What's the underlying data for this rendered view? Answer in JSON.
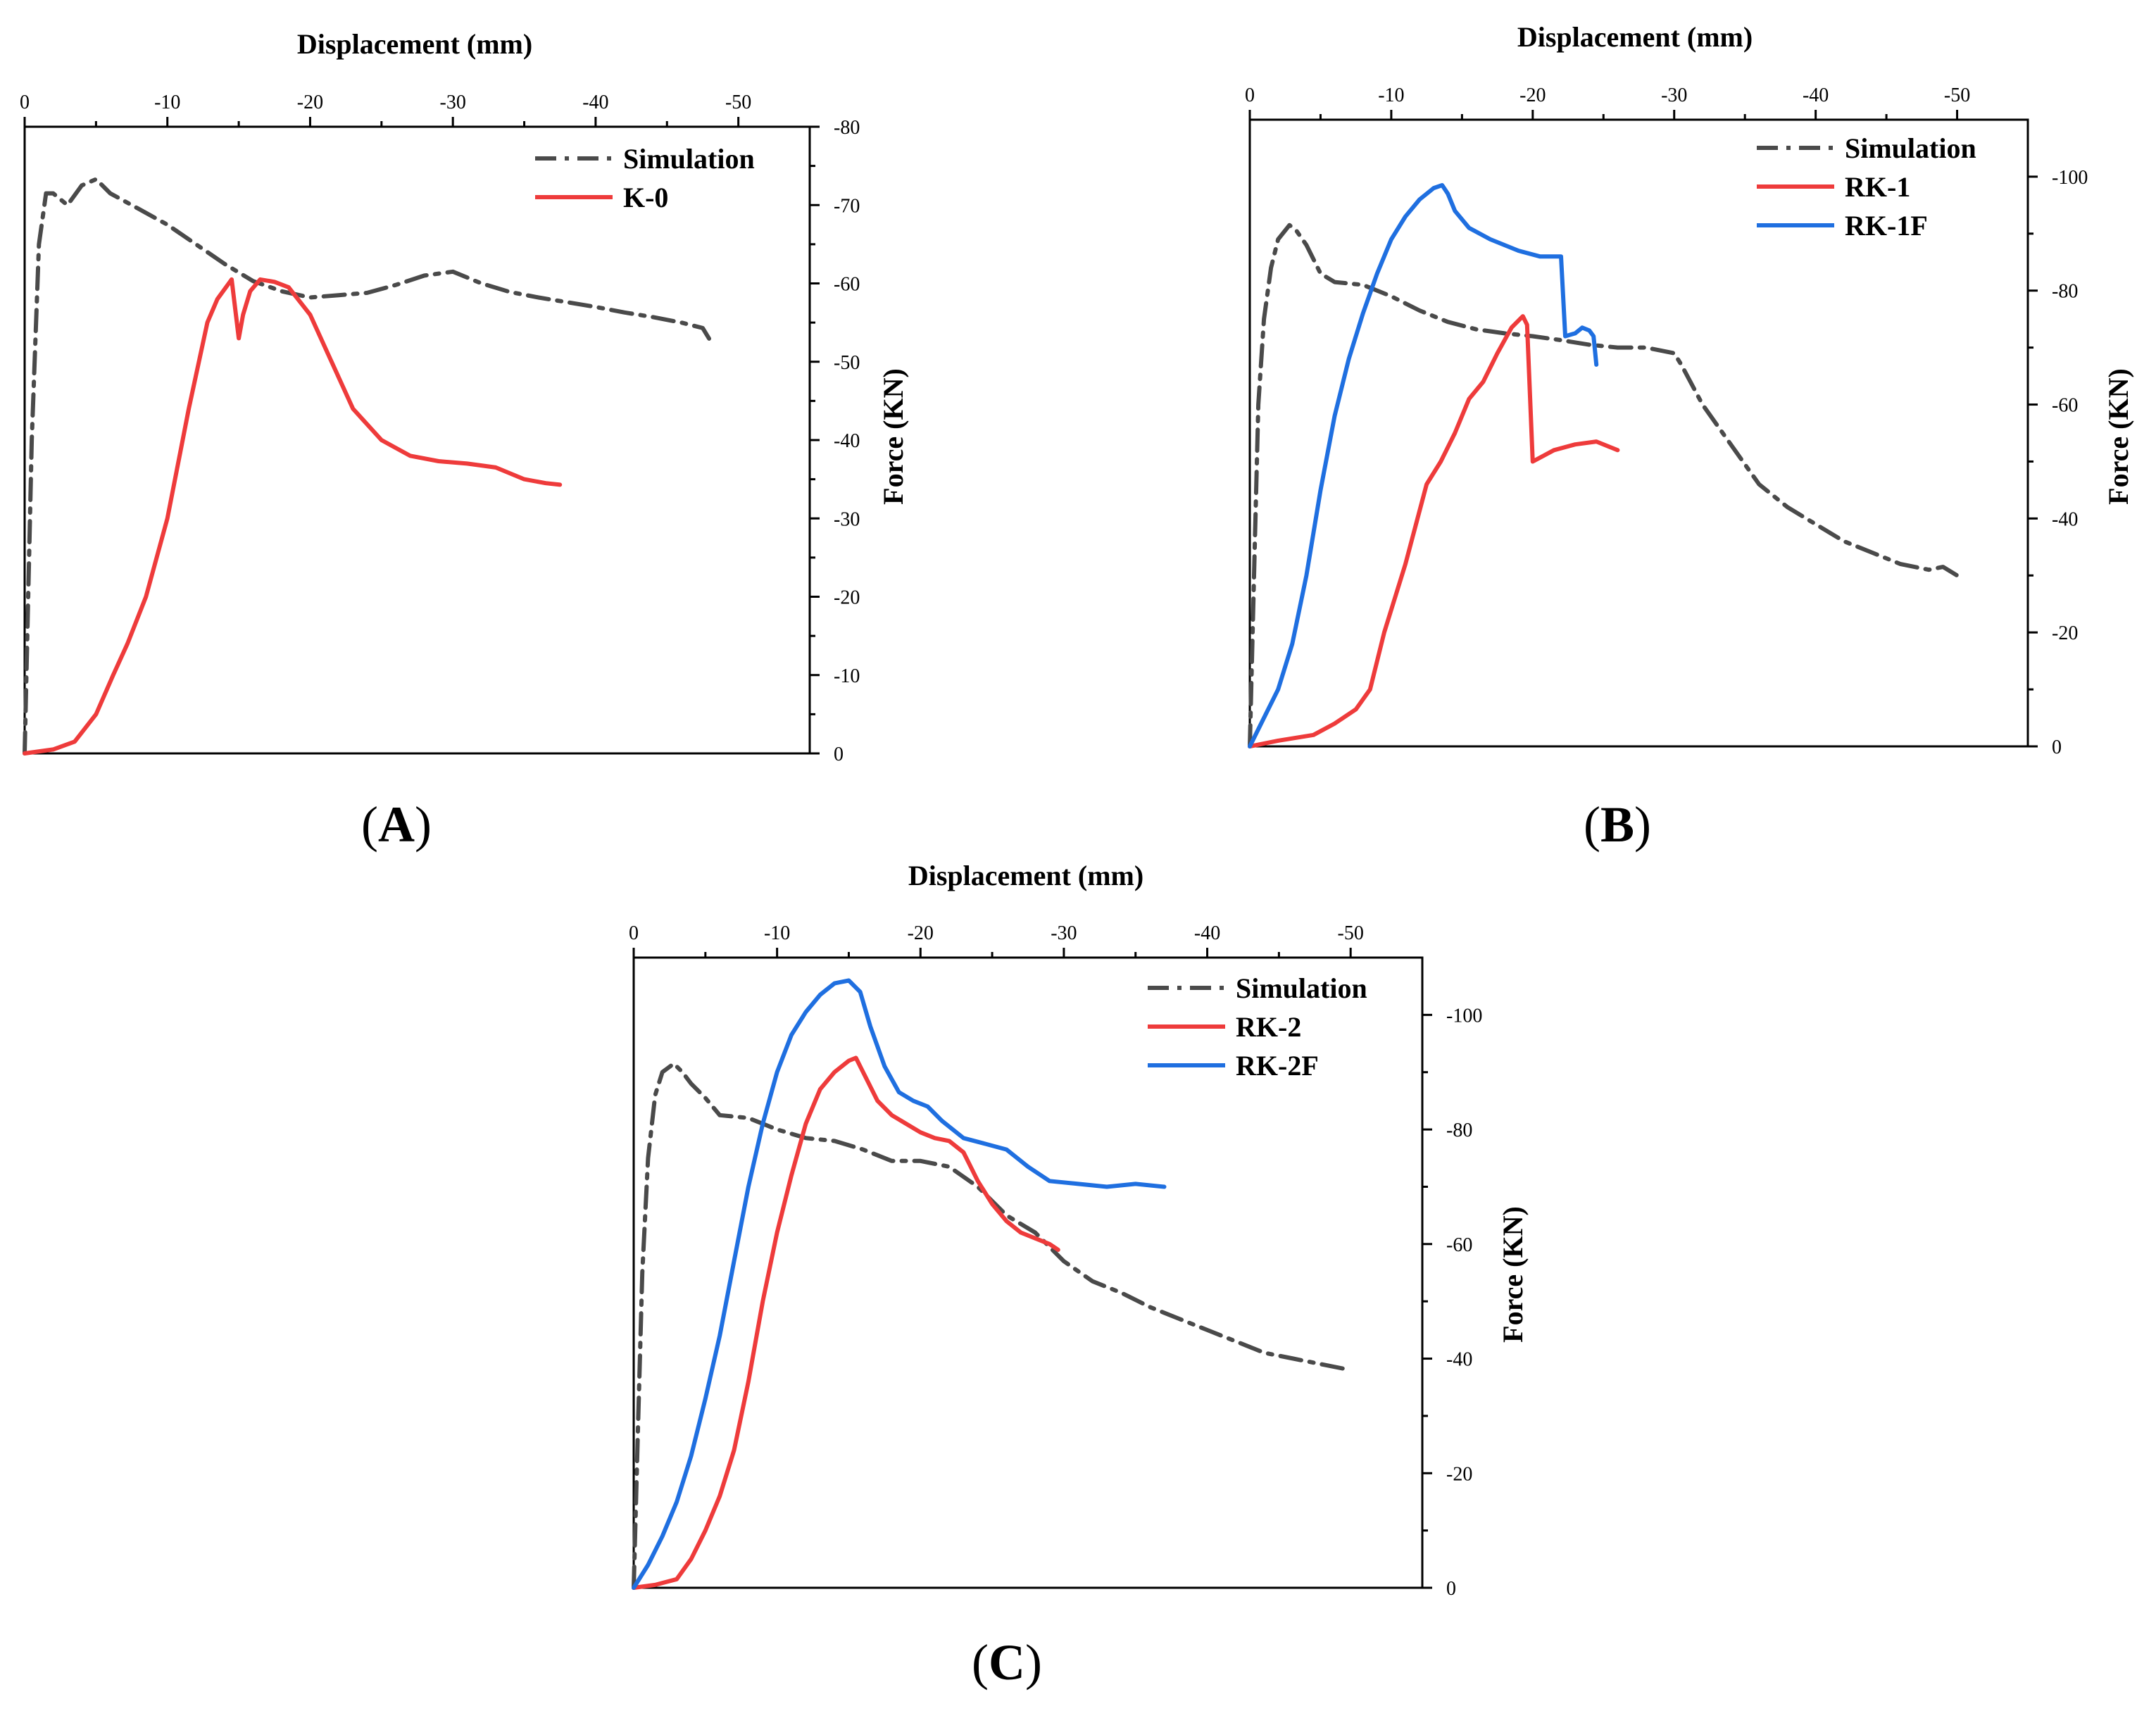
{
  "figure": {
    "colors": {
      "simulation": "#4a4a4a",
      "red": "#ee3b3b",
      "blue": "#1f6fe0"
    }
  },
  "chart_data": [
    {
      "type": "line",
      "panel": "A",
      "xlabel": "Displacement (mm)",
      "ylabel": "Force (KN)",
      "xlim": [
        0,
        -55
      ],
      "ylim": [
        0,
        -80
      ],
      "xticks": [
        0,
        -10,
        -20,
        -30,
        -40,
        -50
      ],
      "yticks": [
        0,
        -10,
        -20,
        -30,
        -40,
        -50,
        -60,
        -70,
        -80
      ],
      "xtick_labels": [
        "0",
        "-10",
        "-20",
        "-30",
        "-40",
        "-50"
      ],
      "ytick_labels": [
        "0",
        "-10",
        "-20",
        "-30",
        "-40",
        "-50",
        "-60",
        "-70",
        "-80"
      ],
      "legend_position": "top-right",
      "series": [
        {
          "name": "Simulation",
          "color": "#4a4a4a",
          "style": "dashdot",
          "x": [
            0,
            -0.5,
            -1,
            -1.5,
            -2,
            -3,
            -4,
            -5,
            -6,
            -8,
            -10,
            -12,
            -14,
            -16,
            -18,
            -20,
            -22,
            -24,
            -26,
            -28,
            -30,
            -32,
            -34,
            -36,
            -38,
            -40,
            -42,
            -44,
            -46,
            -47.5,
            -48
          ],
          "y": [
            0,
            -40,
            -65,
            -71.5,
            -71.5,
            -70,
            -72.5,
            -73.3,
            -71.5,
            -69.5,
            -67.5,
            -65,
            -62.5,
            -60.3,
            -59,
            -58.2,
            -58.5,
            -58.8,
            -59.8,
            -61,
            -61.5,
            -60,
            -58.9,
            -58.2,
            -57.6,
            -57,
            -56.3,
            -55.7,
            -55,
            -54.3,
            -52.8
          ]
        },
        {
          "name": "K-0",
          "color": "#ee3b3b",
          "style": "solid",
          "x": [
            0,
            -2,
            -3.5,
            -5,
            -6.2,
            -7.2,
            -8.5,
            -10,
            -11.5,
            -12.8,
            -13.5,
            -14.5,
            -15,
            -15.3,
            -15.8,
            -16.5,
            -17.5,
            -18.5,
            -20,
            -21.5,
            -23,
            -25,
            -27,
            -29,
            -31,
            -33,
            -35,
            -36.5,
            -37.5
          ],
          "y": [
            0,
            -0.5,
            -1.5,
            -5,
            -10,
            -14,
            -20,
            -30,
            -44,
            -55,
            -58,
            -60.5,
            -53,
            -56,
            -59,
            -60.5,
            -60.2,
            -59.5,
            -56,
            -50,
            -44,
            -40,
            -38,
            -37.3,
            -37,
            -36.5,
            -35,
            -34.5,
            -34.3
          ]
        }
      ]
    },
    {
      "type": "line",
      "panel": "B",
      "xlabel": "Displacement (mm)",
      "ylabel": "Force (KN)",
      "xlim": [
        0,
        -55
      ],
      "ylim": [
        0,
        -110
      ],
      "xticks": [
        0,
        -10,
        -20,
        -30,
        -40,
        -50
      ],
      "yticks": [
        0,
        -20,
        -40,
        -60,
        -80,
        -100
      ],
      "xtick_labels": [
        "0",
        "-10",
        "-20",
        "-30",
        "-40",
        "-50"
      ],
      "ytick_labels": [
        "0",
        "-20",
        "-40",
        "-60",
        "-80",
        "-100"
      ],
      "legend_position": "top-right",
      "series": [
        {
          "name": "Simulation",
          "color": "#4a4a4a",
          "style": "dashdot",
          "x": [
            0,
            -0.3,
            -0.6,
            -1,
            -1.5,
            -2,
            -2.8,
            -3.3,
            -4,
            -5,
            -6,
            -8,
            -10,
            -12,
            -14,
            -16,
            -18,
            -20,
            -22,
            -24,
            -26,
            -28,
            -30,
            -30.5,
            -32,
            -34,
            -36,
            -38,
            -40,
            -42,
            -44,
            -46,
            -48,
            -49,
            -50
          ],
          "y": [
            0,
            -30,
            -60,
            -75,
            -84,
            -89,
            -91.5,
            -90.5,
            -88,
            -83,
            -81.5,
            -81,
            -79,
            -76.5,
            -74.5,
            -73.2,
            -72.5,
            -72,
            -71.3,
            -70.5,
            -70,
            -70,
            -69,
            -67,
            -60,
            -53,
            -46,
            -42,
            -39,
            -36,
            -34,
            -32,
            -31,
            -31.5,
            -30
          ]
        },
        {
          "name": "RK-1",
          "color": "#ee3b3b",
          "style": "solid",
          "x": [
            0,
            -2,
            -4.5,
            -6,
            -7.5,
            -8.5,
            -9.5,
            -11,
            -12.5,
            -13.5,
            -14.5,
            -15.5,
            -16.5,
            -17.5,
            -18.5,
            -19.3,
            -19.6,
            -20,
            -21.5,
            -23,
            -24.5,
            -26
          ],
          "y": [
            0,
            -1,
            -2,
            -4,
            -6.5,
            -10,
            -20,
            -32,
            -46,
            -50,
            -55,
            -61,
            -64,
            -69,
            -73.5,
            -75.5,
            -74,
            -50,
            -52,
            -53,
            -53.5,
            -52
          ]
        },
        {
          "name": "RK-1F",
          "color": "#1f6fe0",
          "style": "solid",
          "x": [
            0,
            -1,
            -2,
            -3,
            -4,
            -5,
            -6,
            -7,
            -8,
            -9,
            -10,
            -11,
            -12,
            -13,
            -13.6,
            -14,
            -14.5,
            -15.5,
            -17,
            -19,
            -20.5,
            -22,
            -22.3,
            -23,
            -23.5,
            -24,
            -24.3,
            -24.5
          ],
          "y": [
            0,
            -5,
            -10,
            -18,
            -30,
            -45,
            -58,
            -68,
            -76,
            -83,
            -89,
            -93,
            -96,
            -98,
            -98.5,
            -97,
            -94,
            -91,
            -89,
            -87,
            -86,
            -86,
            -72,
            -72.5,
            -73.5,
            -73,
            -72,
            -67
          ]
        }
      ]
    },
    {
      "type": "line",
      "panel": "C",
      "xlabel": "Displacement (mm)",
      "ylabel": "Force (KN)",
      "xlim": [
        0,
        -55
      ],
      "ylim": [
        0,
        -110
      ],
      "xticks": [
        0,
        -10,
        -20,
        -30,
        -40,
        -50
      ],
      "yticks": [
        0,
        -20,
        -40,
        -60,
        -80,
        -100
      ],
      "xtick_labels": [
        "0",
        "-10",
        "-20",
        "-30",
        "-40",
        "-50"
      ],
      "ytick_labels": [
        "0",
        "-20",
        "-40",
        "-60",
        "-80",
        "-100"
      ],
      "legend_position": "top-right",
      "series": [
        {
          "name": "Simulation",
          "color": "#4a4a4a",
          "style": "dashdot",
          "x": [
            0,
            -0.3,
            -0.6,
            -1,
            -1.5,
            -2,
            -2.8,
            -3.4,
            -4,
            -5,
            -6,
            -8,
            -10,
            -12,
            -14,
            -16,
            -18,
            -20,
            -22,
            -24,
            -26,
            -28,
            -30,
            -32,
            -34,
            -36,
            -38,
            -40,
            -42,
            -44,
            -46,
            -48,
            -50
          ],
          "y": [
            0,
            -28,
            -55,
            -75,
            -86,
            -90,
            -91.5,
            -90,
            -88,
            -85.5,
            -82.5,
            -82,
            -80,
            -78.5,
            -78,
            -76.5,
            -74.5,
            -74.5,
            -73.5,
            -70,
            -65,
            -62,
            -57,
            -53.5,
            -51.5,
            -49,
            -47,
            -45,
            -43,
            -41,
            -40,
            -39,
            -38
          ]
        },
        {
          "name": "RK-2",
          "color": "#ee3b3b",
          "style": "solid",
          "x": [
            0,
            -1.5,
            -3,
            -4,
            -5,
            -6,
            -7,
            -8,
            -9,
            -10,
            -11,
            -12,
            -13,
            -14,
            -15,
            -15.5,
            -16,
            -17,
            -18,
            -19,
            -20,
            -21,
            -22,
            -23,
            -24,
            -25,
            -26,
            -27,
            -28,
            -29,
            -29.6
          ],
          "y": [
            0,
            -0.5,
            -1.5,
            -5,
            -10,
            -16,
            -24,
            -36,
            -50,
            -62,
            -72,
            -81,
            -87,
            -90,
            -92,
            -92.5,
            -90,
            -85,
            -82.5,
            -81,
            -79.5,
            -78.5,
            -78,
            -76,
            -71,
            -67,
            -64,
            -62,
            -61,
            -60,
            -59
          ]
        },
        {
          "name": "RK-2F",
          "color": "#1f6fe0",
          "style": "solid",
          "x": [
            0,
            -1,
            -2,
            -3,
            -4,
            -5,
            -6,
            -7,
            -8,
            -9,
            -10,
            -11,
            -12,
            -13,
            -14,
            -15,
            -15.8,
            -16.5,
            -17.5,
            -18.5,
            -19.5,
            -20.5,
            -21.5,
            -23,
            -24.5,
            -26,
            -27.5,
            -29,
            -31,
            -33,
            -35,
            -37
          ],
          "y": [
            0,
            -4,
            -9,
            -15,
            -23,
            -33,
            -44,
            -57,
            -70,
            -81,
            -90,
            -96.5,
            -100.5,
            -103.5,
            -105.5,
            -106,
            -104,
            -98,
            -91,
            -86.5,
            -85,
            -84,
            -81.5,
            -78.5,
            -77.5,
            -76.5,
            -73.5,
            -71,
            -70.5,
            -70,
            -70.5,
            -70
          ]
        }
      ]
    }
  ],
  "panels": [
    {
      "label": "A",
      "xtitle": "Displacement (mm)",
      "ytitle": "Force (KN)",
      "legend": [
        {
          "name": "Simulation"
        },
        {
          "name": "K-0"
        }
      ]
    },
    {
      "label": "B",
      "xtitle": "Displacement (mm)",
      "ytitle": "Force (KN)",
      "legend": [
        {
          "name": "Simulation"
        },
        {
          "name": "RK-1"
        },
        {
          "name": "RK-1F"
        }
      ]
    },
    {
      "label": "C",
      "xtitle": "Displacement (mm)",
      "ytitle": "Force (KN)",
      "legend": [
        {
          "name": "Simulation"
        },
        {
          "name": "RK-2"
        },
        {
          "name": "RK-2F"
        }
      ]
    }
  ]
}
